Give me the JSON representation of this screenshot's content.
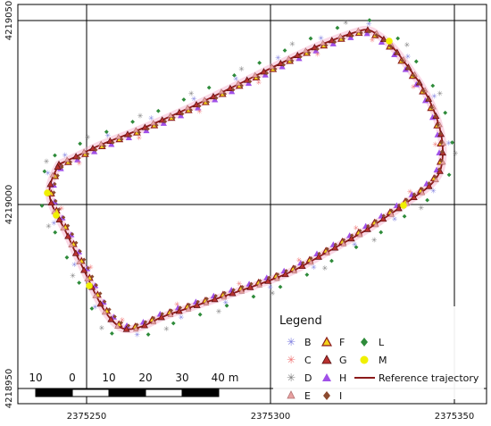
{
  "map": {
    "x_ticks": [
      "2375250",
      "2375300",
      "2375350"
    ],
    "y_ticks": [
      "4219050",
      "4219000",
      "4218950"
    ]
  },
  "scale_bar": {
    "labels": [
      "10",
      "0",
      "10",
      "20",
      "30",
      "40 m"
    ]
  },
  "legend": {
    "title": "Legend",
    "items": [
      {
        "label": "B",
        "symbol": "star",
        "color": "#7f7fe0"
      },
      {
        "label": "C",
        "symbol": "star",
        "color": "#f07878"
      },
      {
        "label": "D",
        "symbol": "star",
        "color": "#7f7f7f"
      },
      {
        "label": "E",
        "symbol": "triangle",
        "color": "#e8a0a0"
      },
      {
        "label": "F",
        "symbol": "triangle",
        "color": "#f2d21a"
      },
      {
        "label": "G",
        "symbol": "triangle",
        "color": "#b8312f"
      },
      {
        "label": "H",
        "symbol": "triangle",
        "color": "#a050e8"
      },
      {
        "label": "I",
        "symbol": "diamond",
        "color": "#8b4a2f"
      },
      {
        "label": "L",
        "symbol": "diamond",
        "color": "#2e8b3a"
      },
      {
        "label": "M",
        "symbol": "circle",
        "color": "#f0f000"
      },
      {
        "label": "Reference trajectory",
        "symbol": "line",
        "color": "#8b1a1a"
      }
    ]
  },
  "colors": {
    "trajectory": "#8b1a1a",
    "trajectory_halo": "#f4a8c8",
    "grid": "#000000"
  }
}
